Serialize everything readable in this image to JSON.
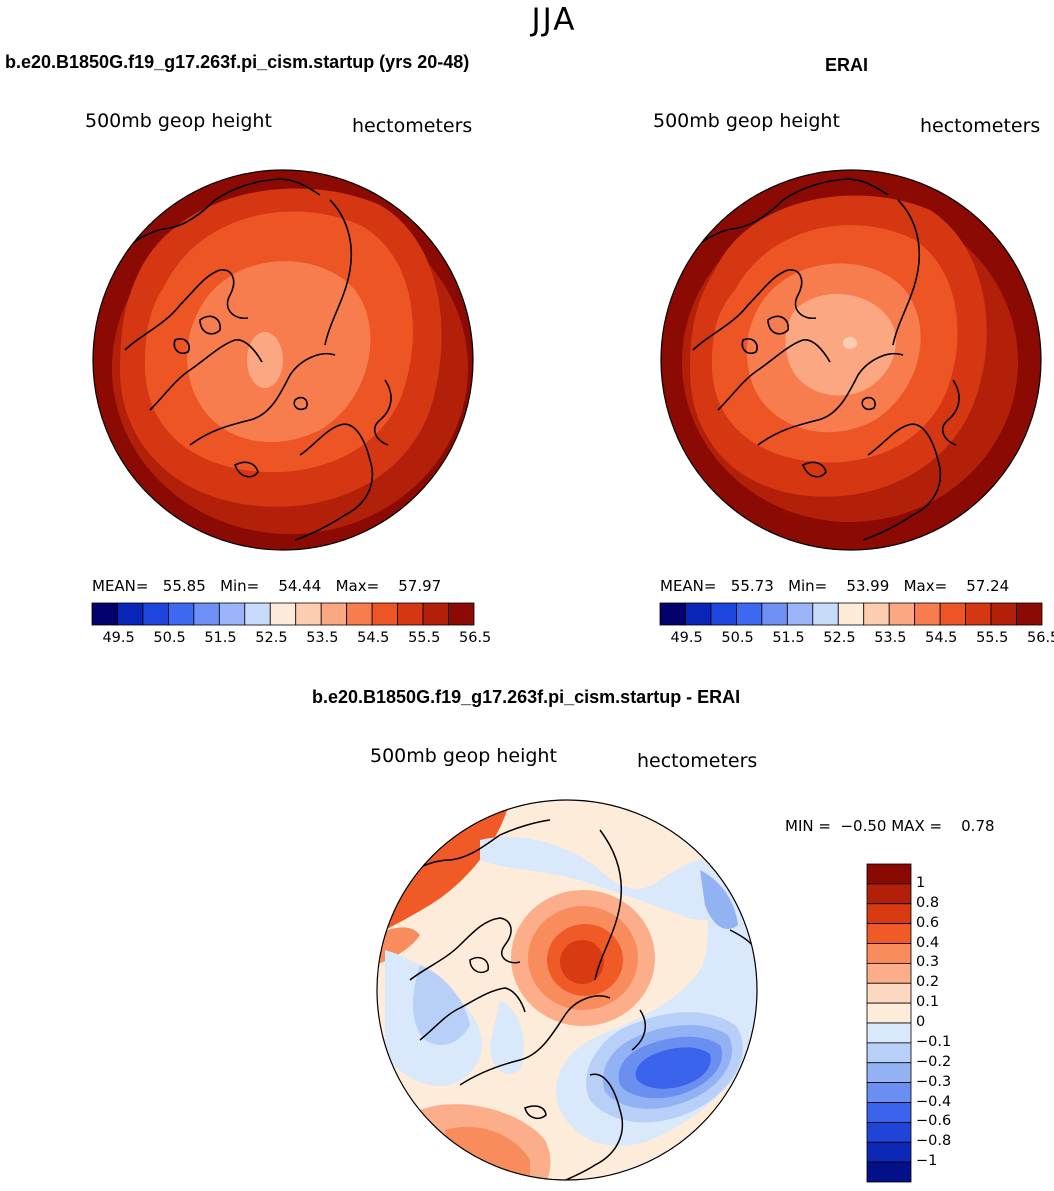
{
  "figure": {
    "season": "JJA"
  },
  "panels": [
    {
      "title": "b.e20.B1850G.f19_g17.263f.pi_cism.startup (yrs 20-48)",
      "variable": "500mb geop height",
      "units": "hectometers",
      "stats": {
        "mean_label": "MEAN=",
        "mean": "55.85",
        "min_label": "Min=",
        "min": "54.44",
        "max_label": "Max=",
        "max": "57.97"
      }
    },
    {
      "title": "ERAI",
      "variable": "500mb geop height",
      "units": "hectometers",
      "stats": {
        "mean_label": "MEAN=",
        "mean": "55.73",
        "min_label": "Min=",
        "min": "53.99",
        "max_label": "Max=",
        "max": "57.24"
      }
    }
  ],
  "difference": {
    "title": "b.e20.B1850G.f19_g17.263f.pi_cism.startup - ERAI",
    "variable": "500mb geop height",
    "units": "hectometers",
    "min_label": "MIN =",
    "min": "−0.50",
    "max_label": "MAX =",
    "max": "0.78"
  },
  "colorbars": {
    "absolute": {
      "colors": [
        "#03016d",
        "#0a26b8",
        "#1e45dd",
        "#3d68f0",
        "#6e8ff6",
        "#9bb4f9",
        "#c8dbfb",
        "#fdebd8",
        "#fccdb0",
        "#fba882",
        "#f77d4f",
        "#ee5524",
        "#d53713",
        "#b3200a",
        "#8b0a03"
      ],
      "ticks": [
        "49.5",
        "50.5",
        "51.5",
        "52.5",
        "53.5",
        "54.5",
        "55.5",
        "56.5"
      ]
    },
    "difference": {
      "colors": [
        "#8a0a03",
        "#b3200a",
        "#d83a12",
        "#ef5a27",
        "#f98c5c",
        "#fcae8b",
        "#fdd8c0",
        "#fdecd9",
        "#d9e8fa",
        "#b8d0f7",
        "#93b2f4",
        "#6b8ff0",
        "#3c63ec",
        "#1f44d8",
        "#0d28b6",
        "#040f8a"
      ],
      "ticks": [
        "1",
        "0.8",
        "0.6",
        "0.4",
        "0.3",
        "0.2",
        "0.1",
        "0",
        "−0.1",
        "−0.2",
        "−0.3",
        "−0.4",
        "−0.6",
        "−0.8",
        "−1"
      ]
    }
  }
}
